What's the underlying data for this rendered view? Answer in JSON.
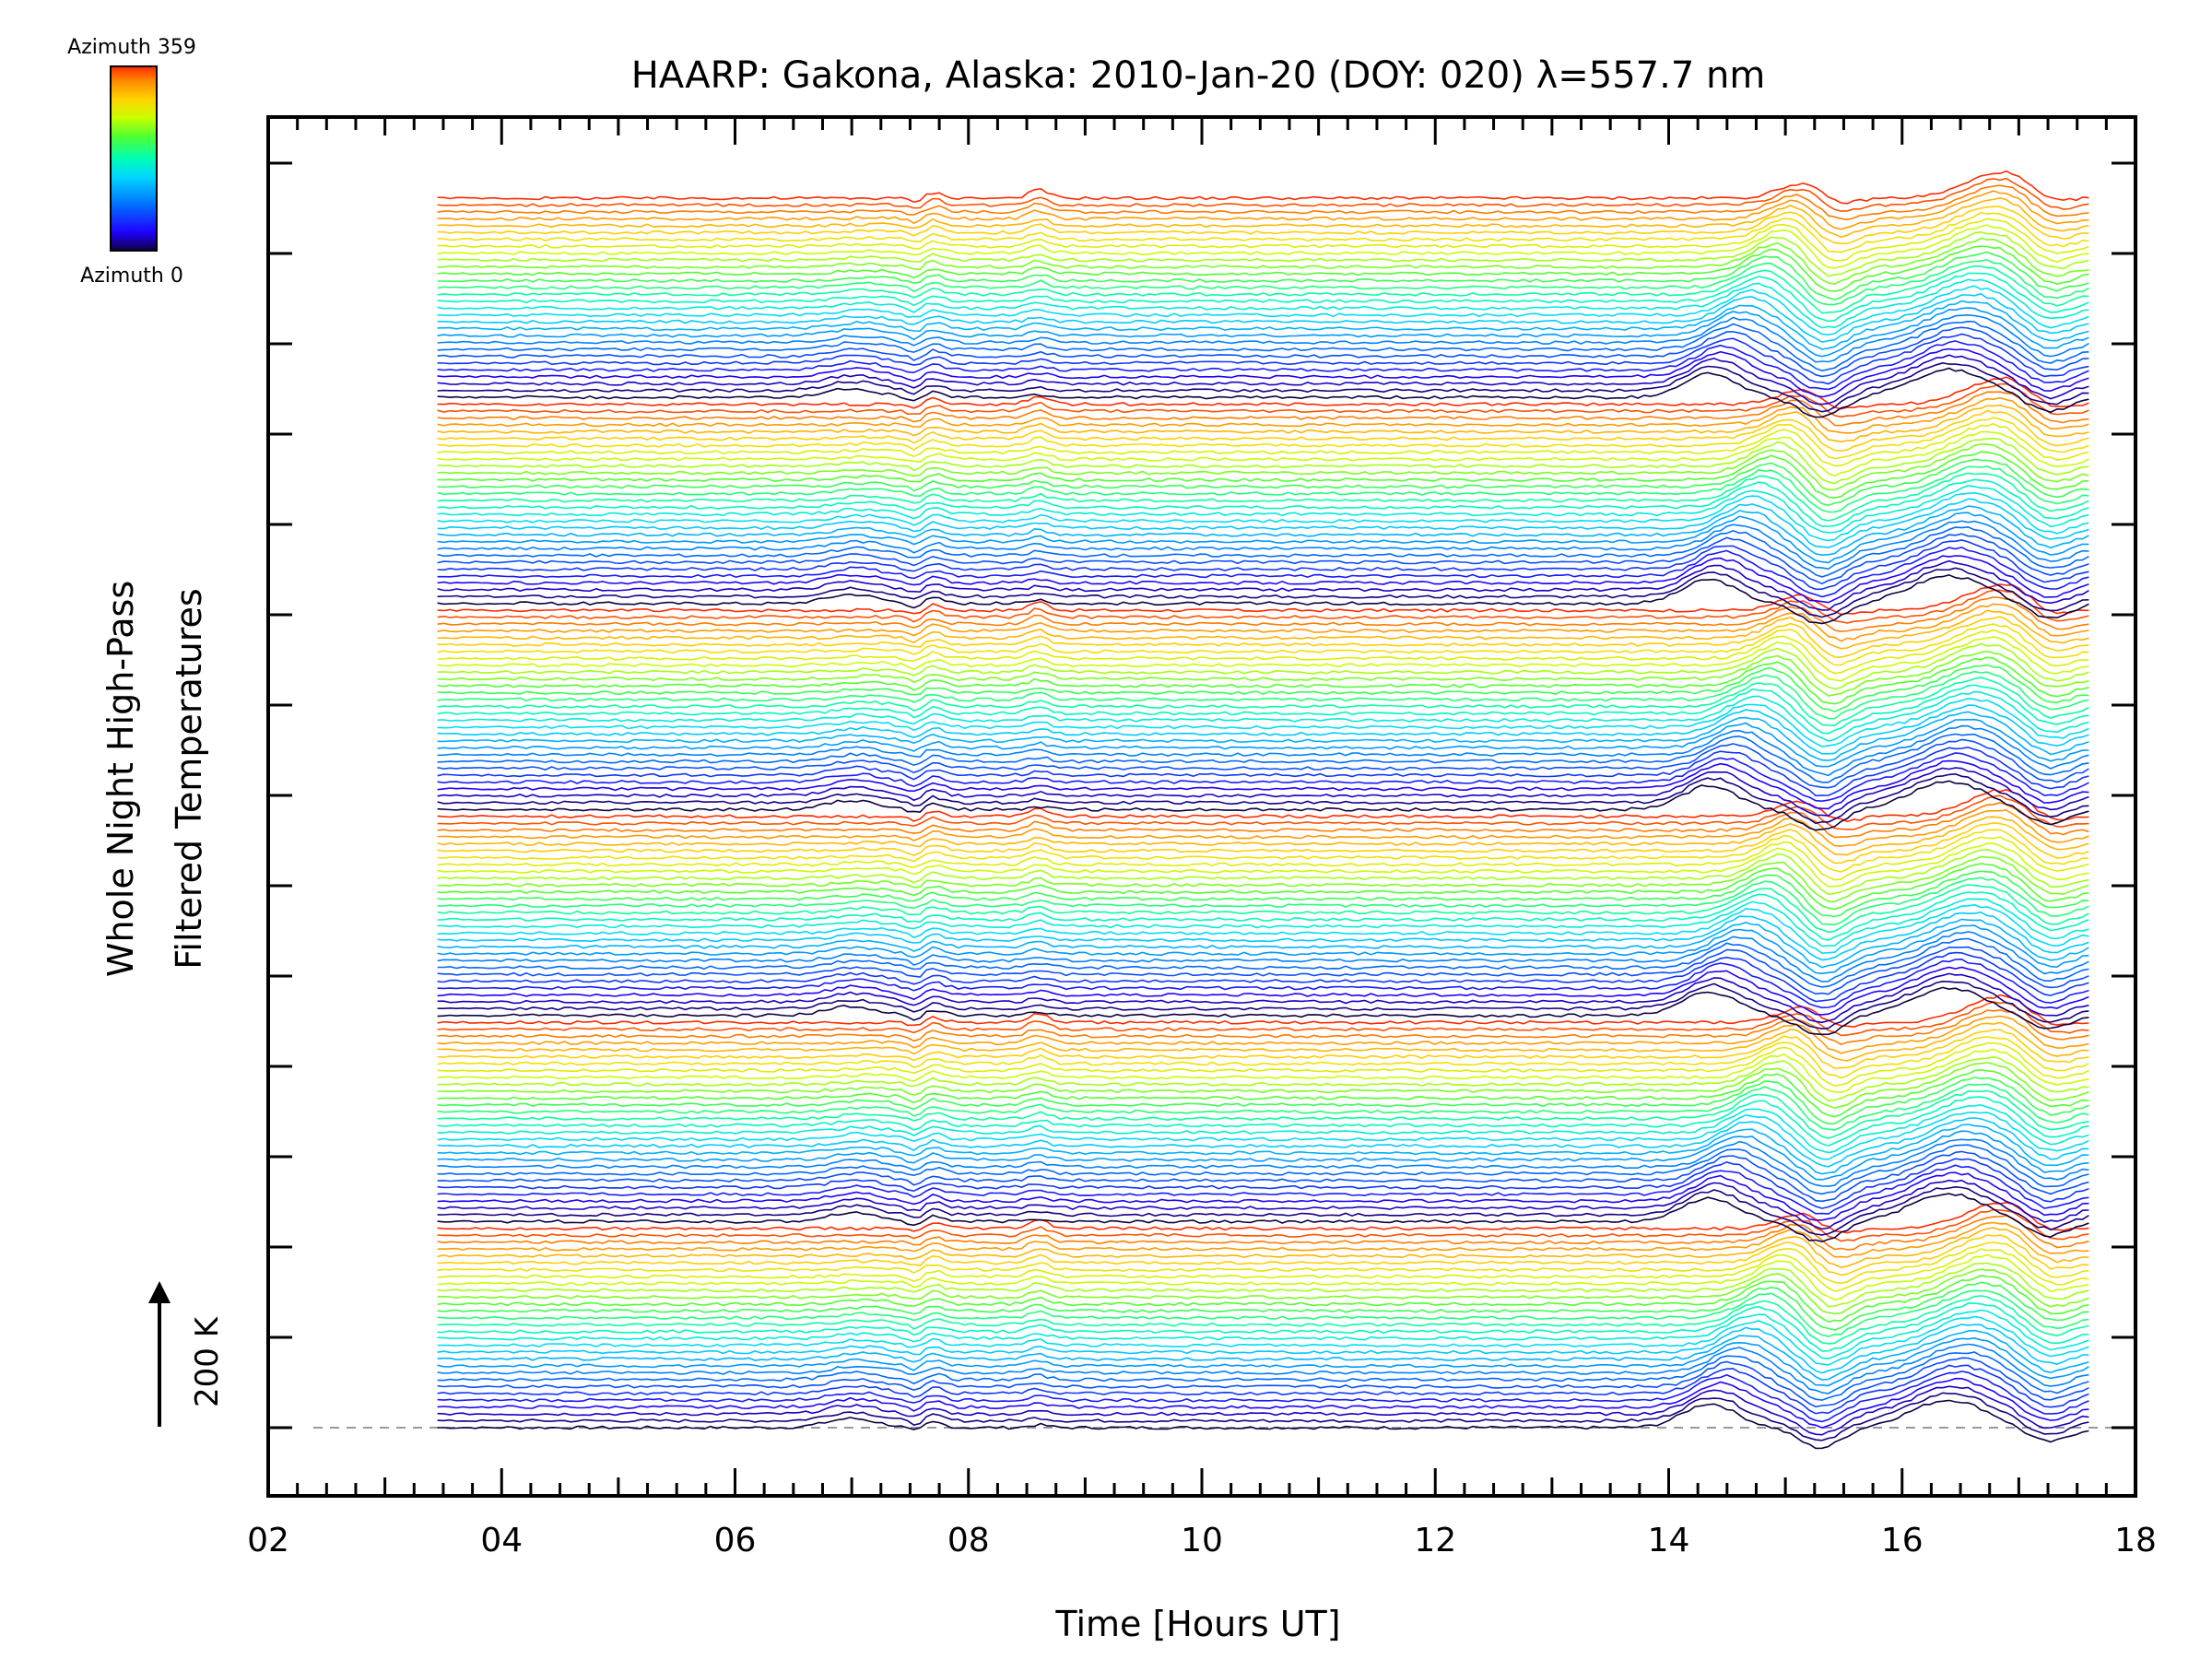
{
  "chart_data": {
    "type": "line",
    "title": "HAARP: Gakona,  Alaska: 2010-Jan-20 (DOY: 020) λ=557.7 nm",
    "xlabel": "Time [Hours UT]",
    "ylabel": [
      "Whole Night High-Pass",
      "Filtered Temperatures"
    ],
    "xlim": [
      2,
      18
    ],
    "x_ticks": [
      "02",
      "04",
      "06",
      "08",
      "10",
      "12",
      "14",
      "16",
      "18"
    ],
    "data_time_range": [
      3.45,
      17.6
    ],
    "colorbar": {
      "top_label": "Azimuth 359",
      "bottom_label": "Azimuth 0",
      "colors": [
        "#ff2a00",
        "#ff8a00",
        "#ffd400",
        "#c8ff00",
        "#50ff30",
        "#00ffb4",
        "#00d8ff",
        "#0070ff",
        "#2000ff",
        "#100040"
      ]
    },
    "scale_bar": {
      "label": "200 K"
    },
    "grid": false,
    "legend": "colorbar top-left",
    "series_count": 180,
    "series_groups": 6,
    "series_per_group": 30,
    "baseline_dashed": true
  }
}
